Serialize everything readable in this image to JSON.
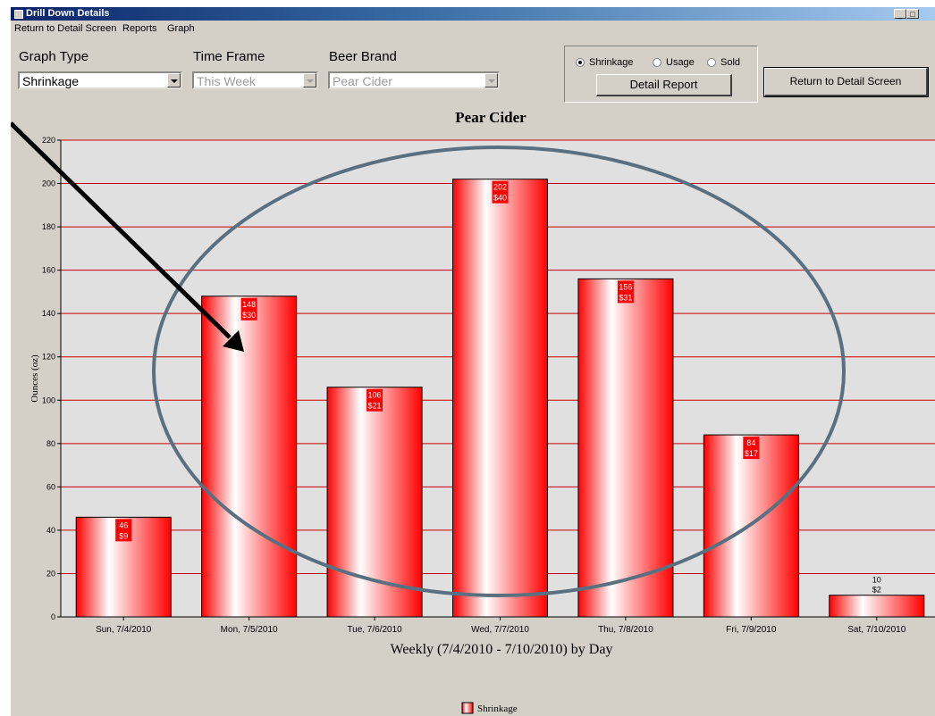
{
  "window": {
    "title": "Drill Down Details",
    "controls": [
      "_",
      "□"
    ]
  },
  "menu": [
    "Return to Detail Screen",
    "Reports",
    "Graph"
  ],
  "filters": {
    "graph_type": {
      "label": "Graph Type",
      "value": "Shrinkage"
    },
    "time_frame": {
      "label": "Time Frame",
      "value": "This Week"
    },
    "beer_brand": {
      "label": "Beer Brand",
      "value": "Pear Cider"
    }
  },
  "radios": [
    {
      "label": "Shrinkage",
      "checked": true
    },
    {
      "label": "Usage",
      "checked": false
    },
    {
      "label": "Sold",
      "checked": false
    }
  ],
  "buttons": {
    "detail_report": "Detail Report",
    "return_detail": "Return to Detail Screen"
  },
  "colors": {
    "bar": "#ff0000",
    "gridline": "#cc0000",
    "plot_bg": "#e0e0e0",
    "annotation": "#5a7080"
  },
  "chart_data": {
    "type": "bar",
    "title": "Pear Cider",
    "xlabel": "Weekly (7/4/2010 - 7/10/2010) by Day",
    "ylabel": "Ounces (oz)",
    "ylim": [
      0,
      220
    ],
    "yticks": [
      0,
      20,
      40,
      60,
      80,
      100,
      120,
      140,
      160,
      180,
      200,
      220
    ],
    "grid": true,
    "legend_position": "bottom",
    "categories": [
      "Sun, 7/4/2010",
      "Mon, 7/5/2010",
      "Tue, 7/6/2010",
      "Wed, 7/7/2010",
      "Thu, 7/8/2010",
      "Fri, 7/9/2010",
      "Sat, 7/10/2010"
    ],
    "series": [
      {
        "name": "Shrinkage",
        "values": [
          46,
          148,
          106,
          202,
          156,
          84,
          10
        ]
      }
    ],
    "cost_labels": [
      "$9",
      "$30",
      "$21",
      "$40",
      "$31",
      "$17",
      "$2"
    ]
  }
}
